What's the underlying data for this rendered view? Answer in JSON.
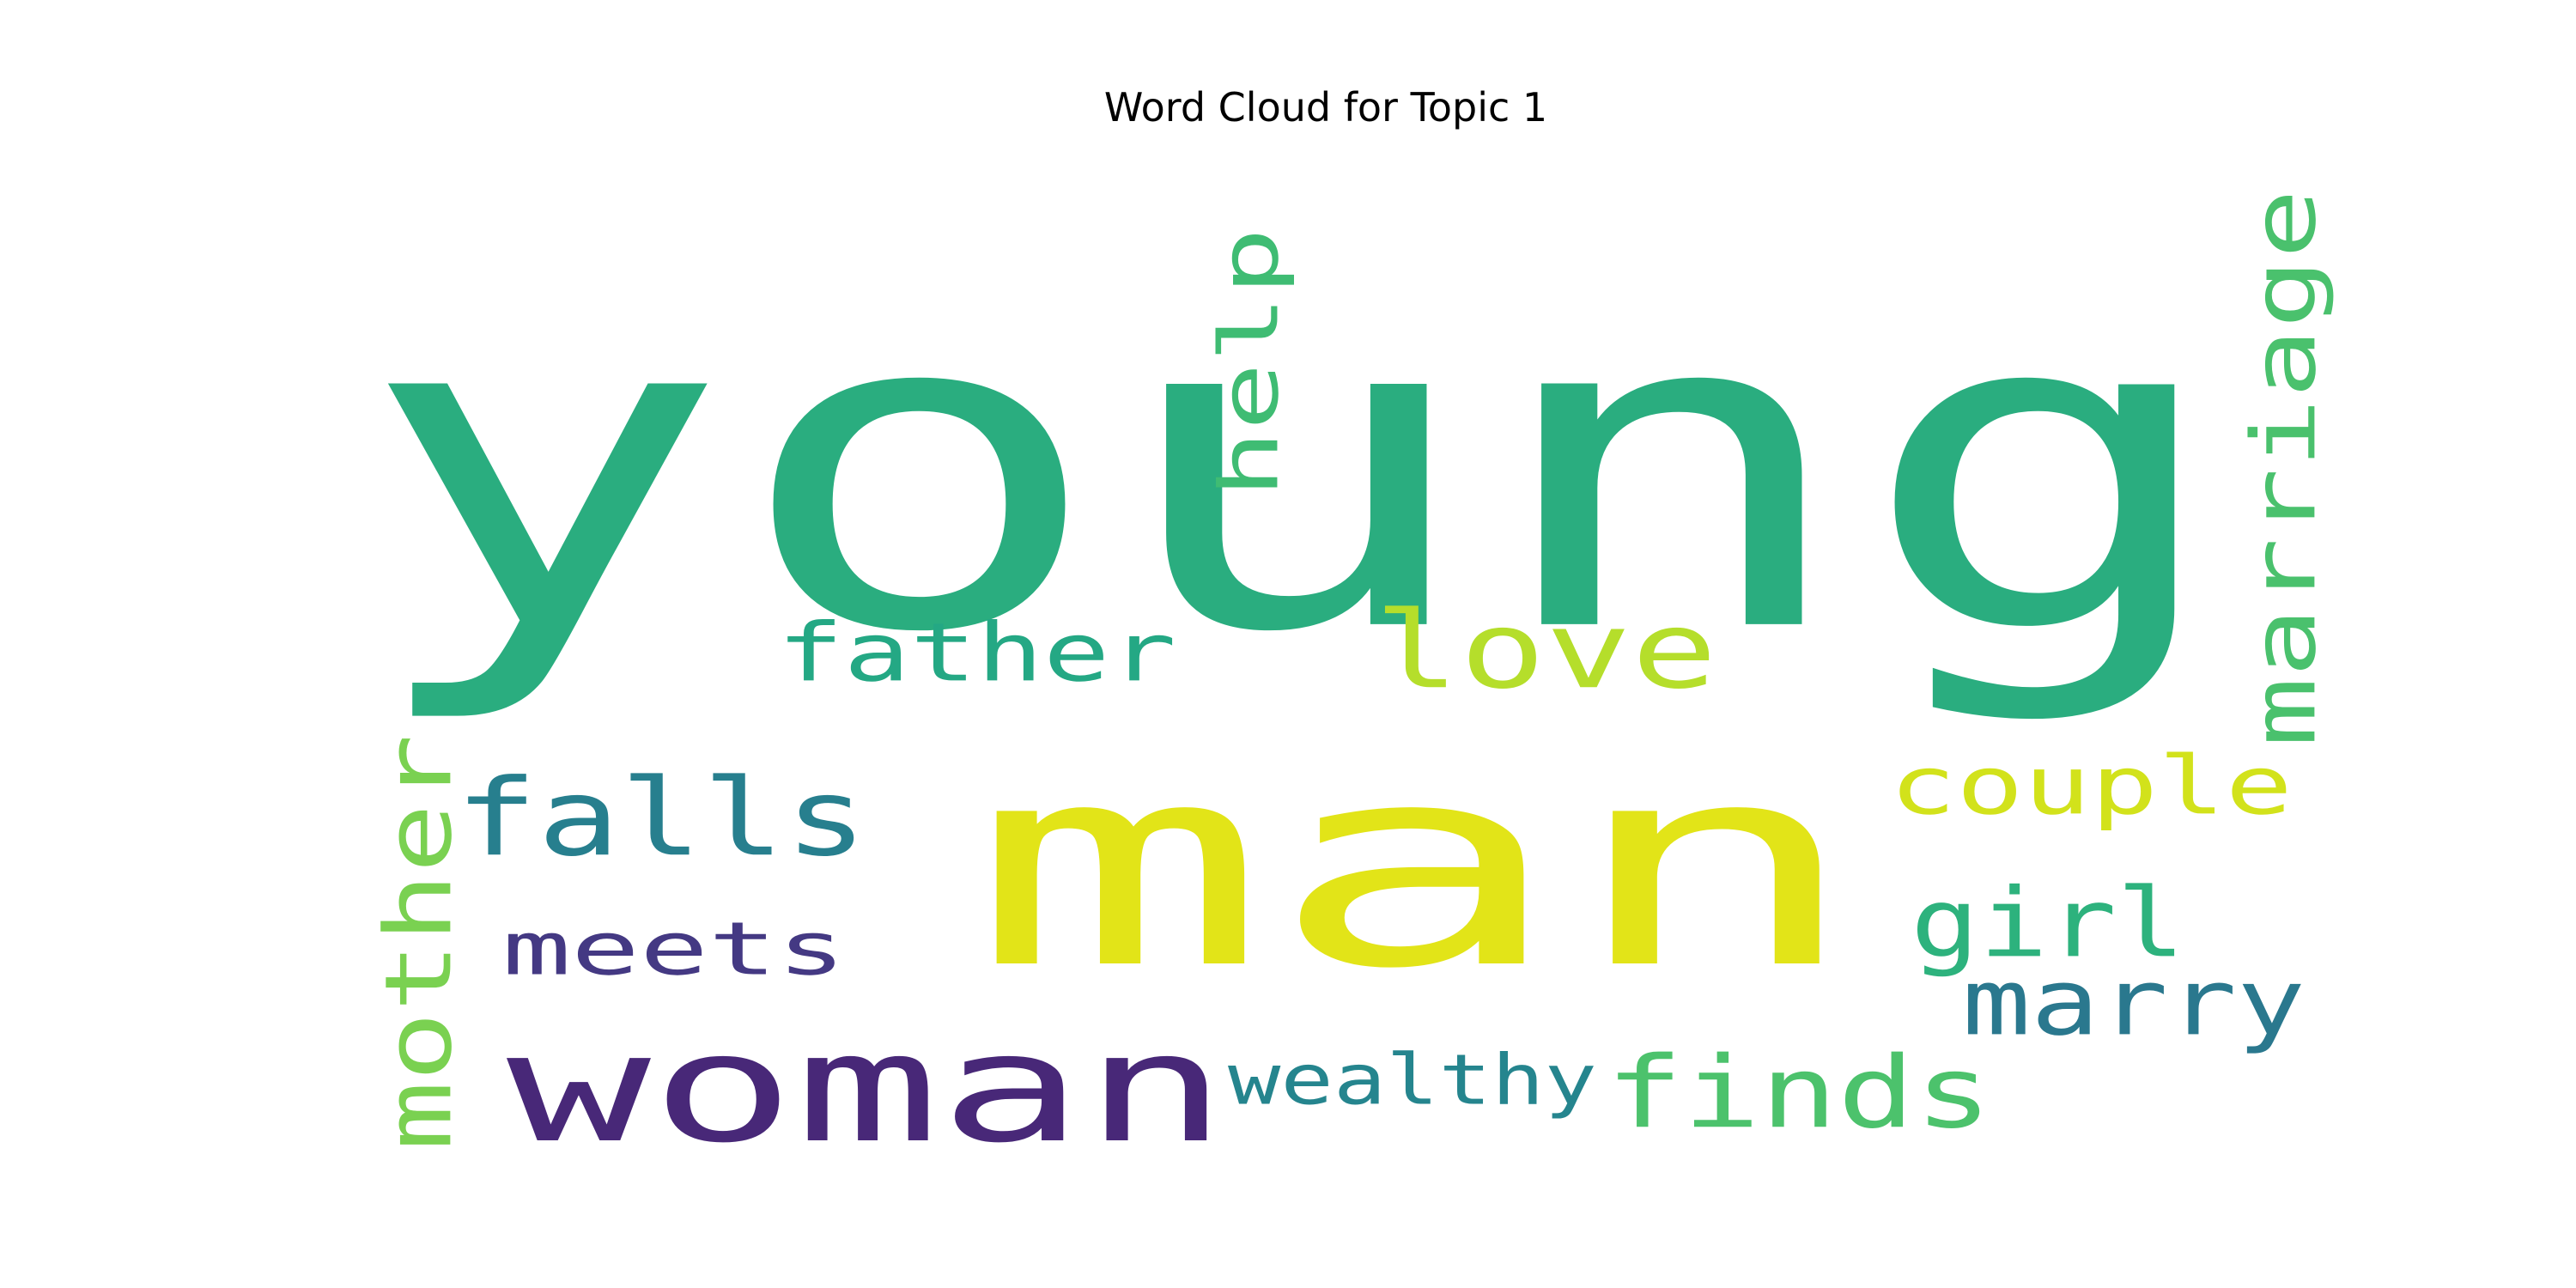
{
  "title": "Word Cloud for Topic 1",
  "words": [
    {
      "text": "young",
      "color": "#2aad7f",
      "orientation": "horizontal"
    },
    {
      "text": "man",
      "color": "#e2e418",
      "orientation": "horizontal"
    },
    {
      "text": "woman",
      "color": "#482878",
      "orientation": "horizontal"
    },
    {
      "text": "love",
      "color": "#b5de2b",
      "orientation": "horizontal"
    },
    {
      "text": "falls",
      "color": "#277f8e",
      "orientation": "horizontal"
    },
    {
      "text": "father",
      "color": "#24a884",
      "orientation": "horizontal"
    },
    {
      "text": "finds",
      "color": "#4cc26c",
      "orientation": "horizontal"
    },
    {
      "text": "couple",
      "color": "#d2e21b",
      "orientation": "horizontal"
    },
    {
      "text": "meets",
      "color": "#443983",
      "orientation": "horizontal"
    },
    {
      "text": "girl",
      "color": "#2db27d",
      "orientation": "horizontal"
    },
    {
      "text": "marry",
      "color": "#2a788e",
      "orientation": "horizontal"
    },
    {
      "text": "wealthy",
      "color": "#25858e",
      "orientation": "horizontal"
    },
    {
      "text": "help",
      "color": "#3fbc73",
      "orientation": "vertical"
    },
    {
      "text": "marriage",
      "color": "#4ac16d",
      "orientation": "vertical"
    },
    {
      "text": "mother",
      "color": "#7ad151",
      "orientation": "vertical"
    }
  ]
}
